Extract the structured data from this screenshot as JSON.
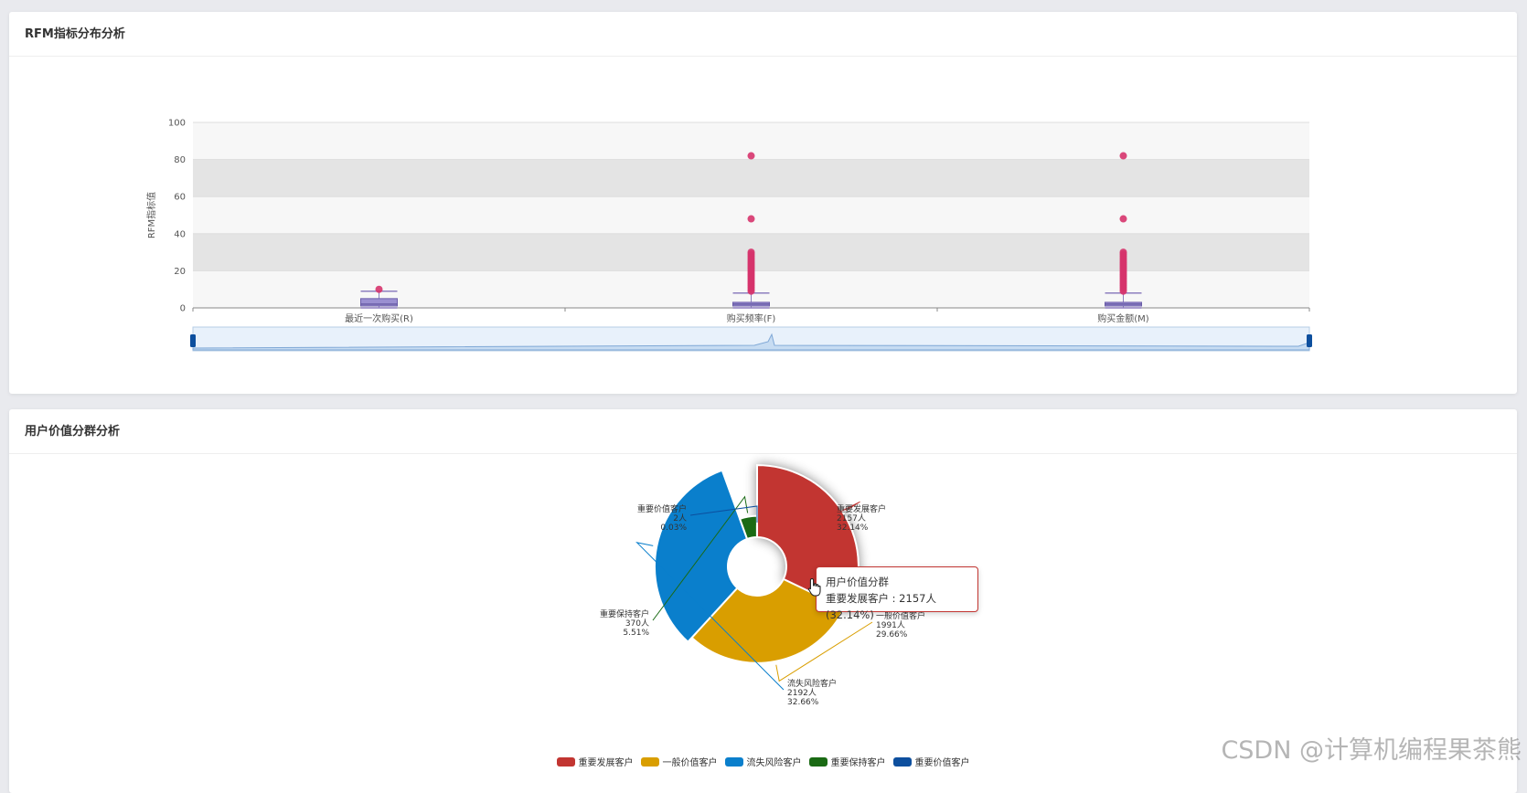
{
  "rfm_panel": {
    "title": "RFM指标分布分析"
  },
  "segment_panel": {
    "title": "用户价值分群分析",
    "tooltip": {
      "title": "用户价值分群",
      "text": "重要发展客户 : 2157人 (32.14%)"
    }
  },
  "watermark": "CSDN @计算机编程果茶熊",
  "chart_data": [
    {
      "type": "boxplot",
      "title": "",
      "xlabel": "",
      "ylabel": "RFM指标值",
      "ylim": [
        0,
        100
      ],
      "yticks": [
        0,
        20,
        40,
        60,
        80,
        100
      ],
      "categories": [
        "最近一次购买(R)",
        "购买频率(F)",
        "购买金额(M)"
      ],
      "boxes": [
        {
          "min": 0,
          "q1": 1,
          "median": 2,
          "q3": 5,
          "max": 9
        },
        {
          "min": 0,
          "q1": 1,
          "median": 2,
          "q3": 3,
          "max": 8
        },
        {
          "min": 0,
          "q1": 1,
          "median": 2,
          "q3": 3,
          "max": 8
        }
      ],
      "outliers": [
        [
          10
        ],
        [
          82,
          48,
          30,
          29,
          28,
          27,
          26,
          25,
          24,
          23,
          22,
          21,
          20,
          19,
          18,
          17,
          16,
          15,
          14,
          13,
          12,
          11,
          10,
          9
        ],
        [
          82,
          48,
          30,
          29,
          28,
          27,
          26,
          25,
          24,
          23,
          22,
          21,
          20,
          19,
          18,
          17,
          16,
          15,
          14,
          13,
          12,
          11,
          10,
          9
        ]
      ],
      "grid": true,
      "datazoom": true
    },
    {
      "type": "pie",
      "rose": true,
      "segments": [
        {
          "name": "重要发展客户",
          "count_label": "2157人",
          "percent_label": "32.14%",
          "value": 2157,
          "color": "#c23531"
        },
        {
          "name": "一般价值客户",
          "count_label": "1991人",
          "percent_label": "29.66%",
          "value": 1991,
          "color": "#d99e00"
        },
        {
          "name": "流失风险客户",
          "count_label": "2192人",
          "percent_label": "32.66%",
          "value": 2192,
          "color": "#0a7fcc"
        },
        {
          "name": "重要保持客户",
          "count_label": "370人",
          "percent_label": "5.51%",
          "value": 370,
          "color": "#1a6a14"
        },
        {
          "name": "重要价值客户",
          "count_label": "2人",
          "percent_label": "0.03%",
          "value": 2,
          "color": "#0d4f9e"
        }
      ],
      "legend_position": "bottom"
    }
  ]
}
